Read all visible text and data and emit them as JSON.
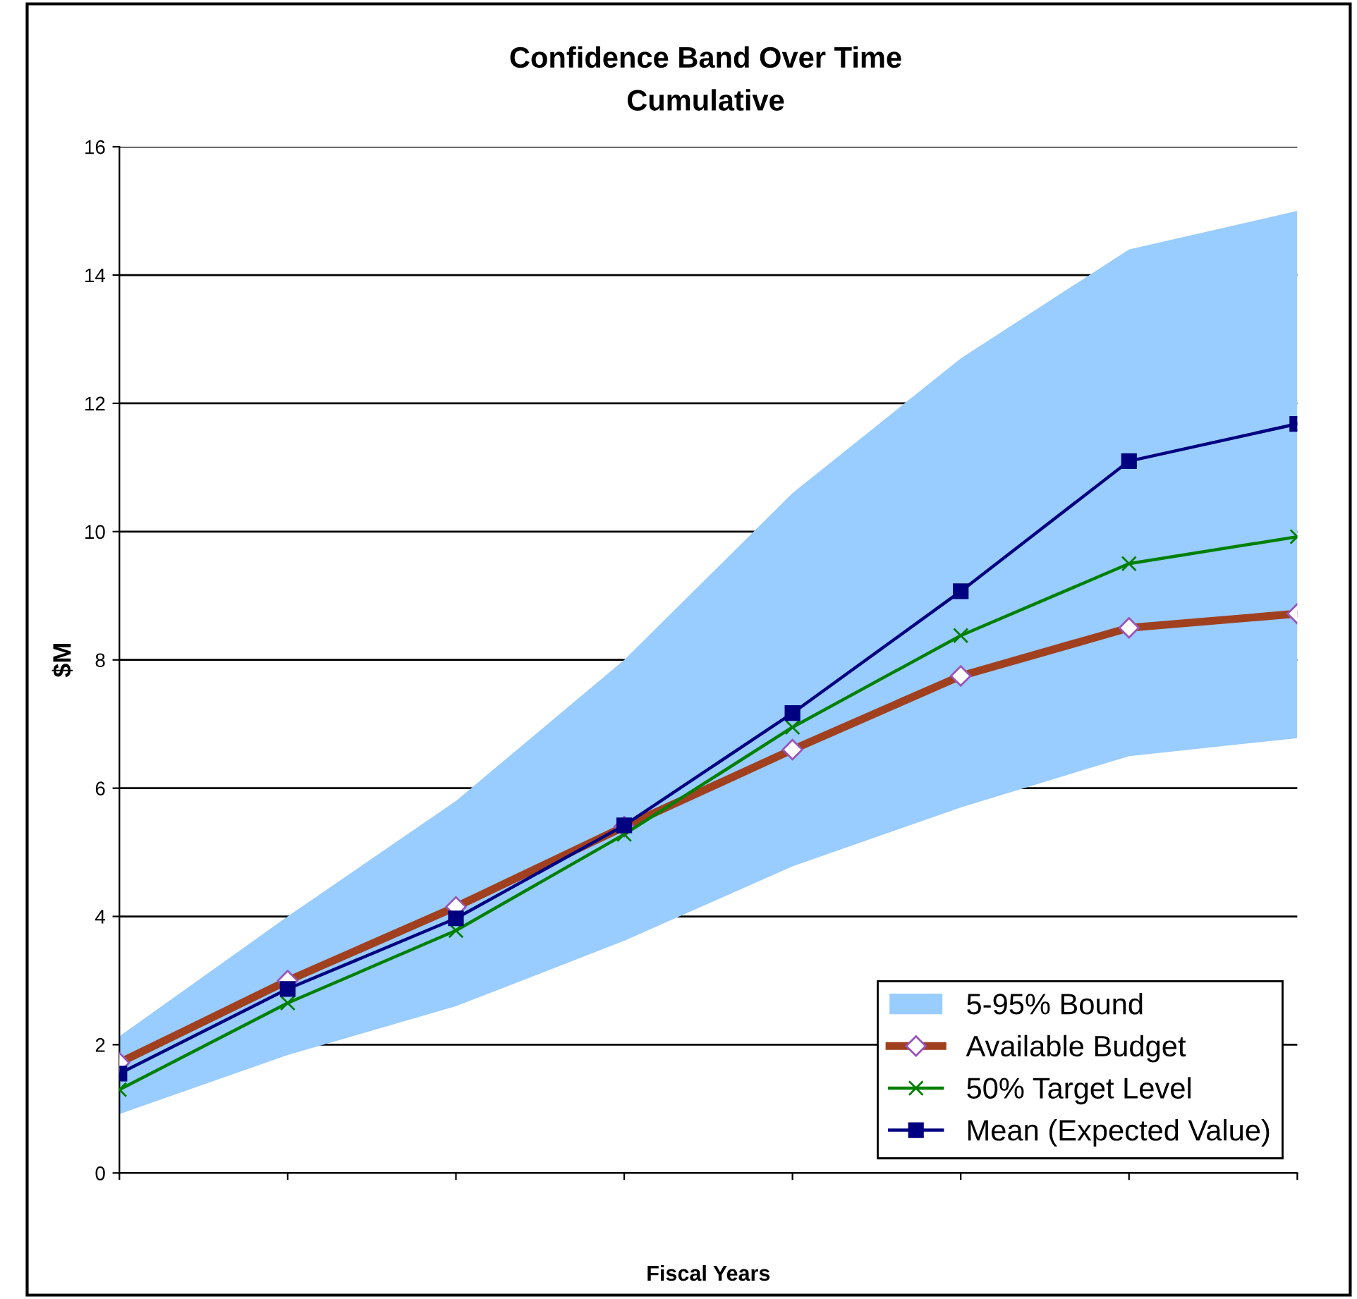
{
  "chart_data": {
    "type": "line",
    "title": "Confidence Band Over Time",
    "subtitle": "Cumulative",
    "xlabel": "Fiscal Years",
    "ylabel": "$M",
    "categories": [
      null,
      null,
      null,
      null,
      null,
      null,
      null,
      null
    ],
    "series": [
      {
        "name": "5-95% Bound",
        "color": "#99ccff",
        "values": [
          null,
          null,
          null,
          null,
          null,
          null,
          null,
          null
        ],
        "lower": [
          0.92,
          1.84,
          2.6,
          3.62,
          4.78,
          5.7,
          6.5,
          6.78
        ],
        "upper": [
          2.13,
          4.0,
          5.8,
          8.0,
          10.6,
          12.7,
          14.4,
          15.0
        ]
      },
      {
        "name": "Available Budget",
        "color": "#a0401e",
        "marker": "diamond",
        "values": [
          1.72,
          3.0,
          4.15,
          5.4,
          6.6,
          7.75,
          8.5,
          8.72
        ]
      },
      {
        "name": "50% Target Level",
        "color": "#008000",
        "marker": "cross",
        "values": [
          1.3,
          2.65,
          3.78,
          5.28,
          6.95,
          8.38,
          9.5,
          9.92
        ]
      },
      {
        "name": "Mean (Expected Value)",
        "color": "#000080",
        "marker": "square",
        "values": [
          1.55,
          2.87,
          3.97,
          5.42,
          7.17,
          9.07,
          11.1,
          11.68
        ]
      }
    ],
    "ylim": [
      0,
      16
    ],
    "yticks": [
      0,
      2,
      4,
      6,
      8,
      10,
      12,
      14,
      16
    ],
    "grid": "y",
    "legend": "bottom right",
    "line_style": "solid"
  }
}
